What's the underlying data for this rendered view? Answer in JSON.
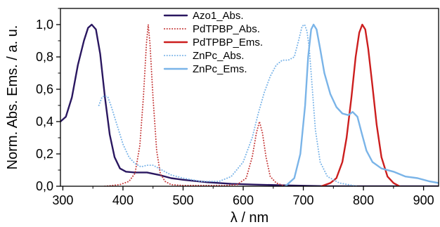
{
  "chart_data": {
    "type": "line",
    "xlabel": "λ / nm",
    "ylabel": "Norm. Abs. Ems. / a. u.",
    "xlim": [
      296,
      925
    ],
    "ylim": [
      0,
      1.1
    ],
    "x_ticks": [
      300,
      400,
      500,
      600,
      700,
      800,
      900
    ],
    "x_tick_labels": [
      "300",
      "400",
      "500",
      "600",
      "700",
      "800",
      "900"
    ],
    "y_ticks": [
      0,
      0.2,
      0.4,
      0.6,
      0.8,
      1.0
    ],
    "y_tick_labels": [
      "0,0",
      "0,2",
      "0,4",
      "0,6",
      "0,8",
      "1,0"
    ],
    "grid": false,
    "legend_position": "top-center",
    "series": [
      {
        "name": "Azo1_Abs.",
        "color": "#2a1760",
        "style": "solid",
        "points": [
          [
            296,
            0.4
          ],
          [
            305,
            0.43
          ],
          [
            315,
            0.55
          ],
          [
            325,
            0.75
          ],
          [
            335,
            0.9
          ],
          [
            342,
            0.98
          ],
          [
            348,
            1.0
          ],
          [
            355,
            0.97
          ],
          [
            362,
            0.82
          ],
          [
            370,
            0.55
          ],
          [
            378,
            0.32
          ],
          [
            386,
            0.18
          ],
          [
            395,
            0.11
          ],
          [
            405,
            0.09
          ],
          [
            420,
            0.085
          ],
          [
            440,
            0.085
          ],
          [
            460,
            0.07
          ],
          [
            480,
            0.05
          ],
          [
            500,
            0.04
          ],
          [
            540,
            0.025
          ],
          [
            580,
            0.015
          ],
          [
            620,
            0.01
          ],
          [
            680,
            0.005
          ],
          [
            740,
            0.0
          ],
          [
            925,
            0.0
          ]
        ]
      },
      {
        "name": "PdTPBP_Abs.",
        "color": "#c63c3c",
        "style": "dotted",
        "points": [
          [
            370,
            0.0
          ],
          [
            395,
            0.01
          ],
          [
            410,
            0.03
          ],
          [
            420,
            0.08
          ],
          [
            428,
            0.25
          ],
          [
            434,
            0.55
          ],
          [
            439,
            0.88
          ],
          [
            442,
            1.0
          ],
          [
            445,
            0.88
          ],
          [
            450,
            0.55
          ],
          [
            456,
            0.22
          ],
          [
            462,
            0.08
          ],
          [
            470,
            0.03
          ],
          [
            480,
            0.01
          ],
          [
            500,
            0.005
          ],
          [
            540,
            0.005
          ],
          [
            570,
            0.005
          ],
          [
            590,
            0.01
          ],
          [
            605,
            0.05
          ],
          [
            615,
            0.18
          ],
          [
            622,
            0.33
          ],
          [
            627,
            0.4
          ],
          [
            632,
            0.33
          ],
          [
            638,
            0.18
          ],
          [
            645,
            0.06
          ],
          [
            655,
            0.02
          ],
          [
            670,
            0.0
          ]
        ]
      },
      {
        "name": "PdTPBP_Ems.",
        "color": "#cc1e1e",
        "style": "solid",
        "points": [
          [
            730,
            0.0
          ],
          [
            745,
            0.02
          ],
          [
            755,
            0.05
          ],
          [
            765,
            0.15
          ],
          [
            772,
            0.3
          ],
          [
            780,
            0.55
          ],
          [
            787,
            0.8
          ],
          [
            793,
            0.95
          ],
          [
            798,
            1.0
          ],
          [
            803,
            0.97
          ],
          [
            808,
            0.85
          ],
          [
            815,
            0.62
          ],
          [
            822,
            0.38
          ],
          [
            830,
            0.18
          ],
          [
            840,
            0.06
          ],
          [
            850,
            0.02
          ],
          [
            860,
            0.0
          ]
        ]
      },
      {
        "name": "ZnPc_Abs.",
        "color": "#7ab4e8",
        "style": "dotted",
        "points": [
          [
            360,
            0.5
          ],
          [
            365,
            0.55
          ],
          [
            370,
            0.56
          ],
          [
            375,
            0.55
          ],
          [
            380,
            0.5
          ],
          [
            390,
            0.38
          ],
          [
            400,
            0.26
          ],
          [
            410,
            0.18
          ],
          [
            420,
            0.14
          ],
          [
            430,
            0.12
          ],
          [
            440,
            0.13
          ],
          [
            450,
            0.13
          ],
          [
            460,
            0.11
          ],
          [
            470,
            0.09
          ],
          [
            480,
            0.07
          ],
          [
            500,
            0.05
          ],
          [
            530,
            0.03
          ],
          [
            560,
            0.03
          ],
          [
            580,
            0.06
          ],
          [
            600,
            0.15
          ],
          [
            615,
            0.3
          ],
          [
            625,
            0.45
          ],
          [
            635,
            0.58
          ],
          [
            645,
            0.68
          ],
          [
            655,
            0.75
          ],
          [
            665,
            0.78
          ],
          [
            675,
            0.78
          ],
          [
            685,
            0.8
          ],
          [
            692,
            0.9
          ],
          [
            698,
            0.99
          ],
          [
            702,
            1.0
          ],
          [
            706,
            0.96
          ],
          [
            710,
            0.85
          ],
          [
            715,
            0.6
          ],
          [
            720,
            0.35
          ],
          [
            728,
            0.15
          ],
          [
            740,
            0.06
          ],
          [
            760,
            0.02
          ],
          [
            790,
            0.0
          ]
        ]
      },
      {
        "name": "ZnPc_Ems.",
        "color": "#7ab4e8",
        "style": "solid",
        "points": [
          [
            670,
            0.0
          ],
          [
            685,
            0.05
          ],
          [
            695,
            0.2
          ],
          [
            703,
            0.5
          ],
          [
            708,
            0.8
          ],
          [
            713,
            0.97
          ],
          [
            717,
            1.0
          ],
          [
            722,
            0.97
          ],
          [
            728,
            0.85
          ],
          [
            735,
            0.7
          ],
          [
            745,
            0.57
          ],
          [
            755,
            0.49
          ],
          [
            765,
            0.45
          ],
          [
            775,
            0.44
          ],
          [
            782,
            0.46
          ],
          [
            790,
            0.43
          ],
          [
            797,
            0.33
          ],
          [
            805,
            0.22
          ],
          [
            815,
            0.15
          ],
          [
            830,
            0.11
          ],
          [
            850,
            0.09
          ],
          [
            870,
            0.06
          ],
          [
            890,
            0.05
          ],
          [
            910,
            0.03
          ],
          [
            925,
            0.02
          ]
        ]
      }
    ]
  }
}
